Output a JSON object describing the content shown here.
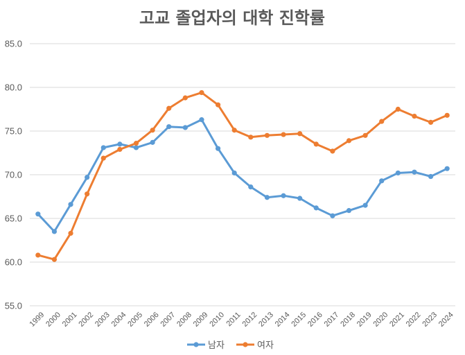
{
  "chart_data": {
    "type": "line",
    "title": "고교 졸업자의 대학 진학률",
    "xlabel": "",
    "ylabel": "",
    "ylim": [
      55.0,
      85.0
    ],
    "yticks": [
      "55.0",
      "60.0",
      "65.0",
      "70.0",
      "75.0",
      "80.0",
      "85.0"
    ],
    "x": [
      "1999",
      "2000",
      "2001",
      "2002",
      "2003",
      "2004",
      "2005",
      "2006",
      "2007",
      "2008",
      "2009",
      "2010",
      "2011",
      "2012",
      "2013",
      "2014",
      "2015",
      "2016",
      "2017",
      "2018",
      "2019",
      "2020",
      "2021",
      "2022",
      "2023",
      "2024"
    ],
    "grid": true,
    "legend_position": "bottom",
    "series": [
      {
        "name": "남자",
        "color": "#5B9BD5",
        "values": [
          65.5,
          63.5,
          66.6,
          69.7,
          73.1,
          73.5,
          73.1,
          73.7,
          75.5,
          75.4,
          76.3,
          73.0,
          70.2,
          68.6,
          67.4,
          67.6,
          67.3,
          66.2,
          65.3,
          65.9,
          66.5,
          69.3,
          70.2,
          70.3,
          69.8,
          70.7
        ]
      },
      {
        "name": "여자",
        "color": "#ED7D31",
        "values": [
          60.8,
          60.3,
          63.3,
          67.8,
          71.9,
          72.9,
          73.6,
          75.1,
          77.6,
          78.8,
          79.4,
          78.0,
          75.1,
          74.3,
          74.5,
          74.6,
          74.7,
          73.5,
          72.7,
          73.9,
          74.5,
          76.1,
          77.5,
          76.7,
          76.0,
          76.8
        ]
      }
    ]
  }
}
